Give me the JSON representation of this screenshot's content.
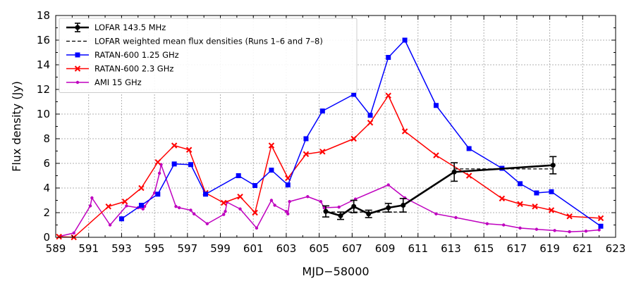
{
  "chart_data": {
    "type": "line",
    "xlabel": "MJD−58000",
    "ylabel": "Flux density (Jy)",
    "xlim": [
      589,
      623
    ],
    "ylim": [
      0,
      18
    ],
    "xticks": [
      589,
      591,
      593,
      595,
      597,
      599,
      601,
      603,
      605,
      607,
      609,
      611,
      613,
      615,
      617,
      619,
      621,
      623
    ],
    "yticks": [
      0,
      2,
      4,
      6,
      8,
      10,
      12,
      14,
      16,
      18
    ],
    "grid": true,
    "legend_position": "top-left",
    "series": [
      {
        "name": "LOFAR 143.5 MHz",
        "color": "#000000",
        "marker": "circle",
        "errorbars": true,
        "points": [
          {
            "x": 605.4,
            "y": 2.1,
            "yerr": 0.45
          },
          {
            "x": 606.3,
            "y": 1.75,
            "yerr": 0.3
          },
          {
            "x": 607.1,
            "y": 2.5,
            "yerr": 0.5
          },
          {
            "x": 608.0,
            "y": 1.9,
            "yerr": 0.3
          },
          {
            "x": 609.2,
            "y": 2.4,
            "yerr": 0.35
          },
          {
            "x": 610.1,
            "y": 2.6,
            "yerr": 0.55
          },
          {
            "x": 613.2,
            "y": 5.3,
            "yerr": 0.75
          },
          {
            "x": 619.2,
            "y": 5.85,
            "yerr": 0.7
          }
        ]
      },
      {
        "name": "LOFAR weighted mean flux densities (Runs 1–6 and 7–8)",
        "color": "#000000",
        "dashed": true,
        "segments": [
          [
            [
              605.4,
              2.05
            ],
            [
              610.1,
              2.05
            ]
          ],
          [
            [
              613.2,
              5.55
            ],
            [
              619.2,
              5.55
            ]
          ]
        ]
      },
      {
        "name": "RATAN-600 1.25 GHz",
        "color": "#0000ff",
        "marker": "square",
        "points": [
          {
            "x": 593.0,
            "y": 1.5
          },
          {
            "x": 594.2,
            "y": 2.6
          },
          {
            "x": 595.2,
            "y": 3.5
          },
          {
            "x": 596.2,
            "y": 5.95
          },
          {
            "x": 597.2,
            "y": 5.9
          },
          {
            "x": 598.1,
            "y": 3.5
          },
          {
            "x": 600.1,
            "y": 5.0
          },
          {
            "x": 601.1,
            "y": 4.2
          },
          {
            "x": 602.1,
            "y": 5.45
          },
          {
            "x": 603.1,
            "y": 4.25
          },
          {
            "x": 604.2,
            "y": 8.0
          },
          {
            "x": 605.2,
            "y": 10.25
          },
          {
            "x": 607.1,
            "y": 11.6
          },
          {
            "x": 608.1,
            "y": 9.9
          },
          {
            "x": 609.2,
            "y": 14.6
          },
          {
            "x": 610.2,
            "y": 16.0
          },
          {
            "x": 612.1,
            "y": 10.7
          },
          {
            "x": 614.1,
            "y": 7.2
          },
          {
            "x": 616.1,
            "y": 5.6
          },
          {
            "x": 617.2,
            "y": 4.35
          },
          {
            "x": 618.2,
            "y": 3.6
          },
          {
            "x": 619.1,
            "y": 3.7
          },
          {
            "x": 622.1,
            "y": 0.9
          }
        ]
      },
      {
        "name": "RATAN-600 2.3 GHz",
        "color": "#ff0000",
        "marker": "x",
        "points": [
          {
            "x": 589.2,
            "y": 0.05
          },
          {
            "x": 590.1,
            "y": 0.0
          },
          {
            "x": 592.2,
            "y": 2.5
          },
          {
            "x": 593.2,
            "y": 2.9
          },
          {
            "x": 594.2,
            "y": 4.0
          },
          {
            "x": 595.2,
            "y": 6.1
          },
          {
            "x": 596.2,
            "y": 7.45
          },
          {
            "x": 597.1,
            "y": 7.1
          },
          {
            "x": 598.1,
            "y": 3.6
          },
          {
            "x": 599.2,
            "y": 2.8
          },
          {
            "x": 600.2,
            "y": 3.3
          },
          {
            "x": 601.1,
            "y": 2.0
          },
          {
            "x": 602.1,
            "y": 7.45
          },
          {
            "x": 603.1,
            "y": 4.8
          },
          {
            "x": 604.2,
            "y": 6.75
          },
          {
            "x": 605.2,
            "y": 6.95
          },
          {
            "x": 607.1,
            "y": 8.0
          },
          {
            "x": 608.1,
            "y": 9.3
          },
          {
            "x": 609.2,
            "y": 11.5
          },
          {
            "x": 610.2,
            "y": 8.6
          },
          {
            "x": 612.1,
            "y": 6.65
          },
          {
            "x": 614.1,
            "y": 5.0
          },
          {
            "x": 616.1,
            "y": 3.15
          },
          {
            "x": 617.2,
            "y": 2.7
          },
          {
            "x": 618.1,
            "y": 2.5
          },
          {
            "x": 619.1,
            "y": 2.2
          },
          {
            "x": 620.2,
            "y": 1.7
          },
          {
            "x": 622.1,
            "y": 1.55
          }
        ]
      },
      {
        "name": "AMI 15 GHz",
        "color": "#bf00bf",
        "marker": "dot",
        "points": [
          {
            "x": 589.3,
            "y": 0.1
          },
          {
            "x": 590.1,
            "y": 0.35
          },
          {
            "x": 591.1,
            "y": 2.55
          },
          {
            "x": 591.2,
            "y": 3.2
          },
          {
            "x": 592.3,
            "y": 1.0
          },
          {
            "x": 593.3,
            "y": 2.55
          },
          {
            "x": 594.0,
            "y": 2.4
          },
          {
            "x": 594.3,
            "y": 2.3
          },
          {
            "x": 594.4,
            "y": 2.5
          },
          {
            "x": 595.0,
            "y": 3.6
          },
          {
            "x": 595.3,
            "y": 5.2
          },
          {
            "x": 595.4,
            "y": 5.9
          },
          {
            "x": 596.3,
            "y": 2.5
          },
          {
            "x": 596.5,
            "y": 2.4
          },
          {
            "x": 597.2,
            "y": 2.2
          },
          {
            "x": 597.4,
            "y": 1.9
          },
          {
            "x": 598.2,
            "y": 1.1
          },
          {
            "x": 599.2,
            "y": 1.85
          },
          {
            "x": 599.3,
            "y": 2.1
          },
          {
            "x": 599.4,
            "y": 2.85
          },
          {
            "x": 600.2,
            "y": 2.3
          },
          {
            "x": 601.2,
            "y": 0.75
          },
          {
            "x": 602.1,
            "y": 3.0
          },
          {
            "x": 602.3,
            "y": 2.6
          },
          {
            "x": 603.0,
            "y": 2.1
          },
          {
            "x": 603.1,
            "y": 1.9
          },
          {
            "x": 603.2,
            "y": 2.9
          },
          {
            "x": 604.3,
            "y": 3.3
          },
          {
            "x": 605.1,
            "y": 2.9
          },
          {
            "x": 605.3,
            "y": 2.4
          },
          {
            "x": 606.2,
            "y": 2.45
          },
          {
            "x": 607.2,
            "y": 3.1
          },
          {
            "x": 609.2,
            "y": 4.25
          },
          {
            "x": 610.2,
            "y": 3.2
          },
          {
            "x": 612.1,
            "y": 1.9
          },
          {
            "x": 613.3,
            "y": 1.6
          },
          {
            "x": 615.2,
            "y": 1.1
          },
          {
            "x": 616.2,
            "y": 1.0
          },
          {
            "x": 617.2,
            "y": 0.75
          },
          {
            "x": 618.2,
            "y": 0.65
          },
          {
            "x": 619.3,
            "y": 0.55
          },
          {
            "x": 620.2,
            "y": 0.45
          },
          {
            "x": 621.2,
            "y": 0.5
          },
          {
            "x": 622.0,
            "y": 0.6
          }
        ]
      }
    ]
  }
}
